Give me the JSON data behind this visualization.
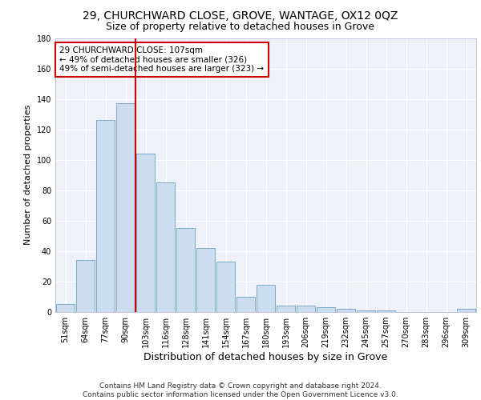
{
  "title": "29, CHURCHWARD CLOSE, GROVE, WANTAGE, OX12 0QZ",
  "subtitle": "Size of property relative to detached houses in Grove",
  "xlabel": "Distribution of detached houses by size in Grove",
  "ylabel": "Number of detached properties",
  "categories": [
    "51sqm",
    "64sqm",
    "77sqm",
    "90sqm",
    "103sqm",
    "116sqm",
    "128sqm",
    "141sqm",
    "154sqm",
    "167sqm",
    "180sqm",
    "193sqm",
    "206sqm",
    "219sqm",
    "232sqm",
    "245sqm",
    "257sqm",
    "270sqm",
    "283sqm",
    "296sqm",
    "309sqm"
  ],
  "values": [
    5,
    34,
    126,
    137,
    104,
    85,
    55,
    42,
    33,
    10,
    18,
    4,
    4,
    3,
    2,
    1,
    1,
    0,
    0,
    0,
    2
  ],
  "bar_color": "#ccddef",
  "bar_edge_color": "#7aaac8",
  "property_line_index": 3.5,
  "annotation_text": "29 CHURCHWARD CLOSE: 107sqm\n← 49% of detached houses are smaller (326)\n49% of semi-detached houses are larger (323) →",
  "annotation_box_color": "#ffffff",
  "annotation_box_edge_color": "#cc0000",
  "ylim": [
    0,
    180
  ],
  "yticks": [
    0,
    20,
    40,
    60,
    80,
    100,
    120,
    140,
    160,
    180
  ],
  "footer_text": "Contains HM Land Registry data © Crown copyright and database right 2024.\nContains public sector information licensed under the Open Government Licence v3.0.",
  "bg_color": "#eef2f8",
  "grid_color": "#ffffff",
  "title_fontsize": 10,
  "subtitle_fontsize": 9,
  "xlabel_fontsize": 9,
  "ylabel_fontsize": 8,
  "tick_fontsize": 7,
  "annotation_fontsize": 7.5,
  "footer_fontsize": 6.5
}
